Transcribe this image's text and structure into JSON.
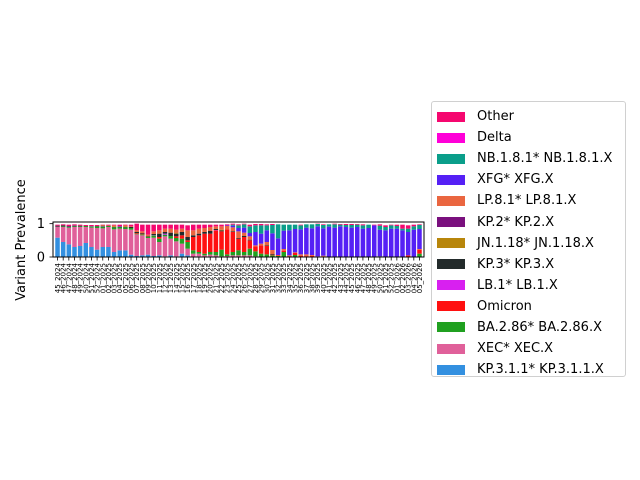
{
  "chart_data": {
    "type": "bar",
    "stacked": true,
    "title": "",
    "xlabel": "",
    "ylabel": "Variant Prevalence",
    "ylim": [
      0,
      1.05
    ],
    "yticks": [
      "0",
      "1"
    ],
    "legend_position": "right",
    "categories": [
      "45_2024",
      "46_2024",
      "47_2024",
      "48_2024",
      "49_2024",
      "50_2024",
      "51_2024",
      "52_2024",
      "01_2025",
      "02_2025",
      "03_2025",
      "04_2025",
      "05_2025",
      "06_2025",
      "07_2025",
      "08_2025",
      "09_2025",
      "10_2025",
      "11_2025",
      "12_2025",
      "13_2025",
      "14_2025",
      "15_2025",
      "16_2025",
      "17_2025",
      "18_2025",
      "19_2025",
      "20_2025",
      "21_2025",
      "22_2025",
      "23_2025",
      "24_2025",
      "25_2025",
      "26_2025",
      "27_2025",
      "28_2025",
      "29_2025",
      "30_2025",
      "31_2025",
      "32_2025",
      "33_2025",
      "34_2025",
      "35_2025",
      "36_2025",
      "37_2025",
      "38_2025",
      "39_2025",
      "40_2025",
      "41_2025",
      "42_2025",
      "43_2025",
      "44_2025",
      "45_2025",
      "46_2025",
      "47_2025",
      "48_2025",
      "49_2025",
      "50_2025",
      "51_2025",
      "52_2025",
      "01_2026",
      "02_2026",
      "03_2026",
      "04_2026",
      "05_2026"
    ],
    "series": [
      {
        "name": "KP.3.1.1* KP.3.1.1.X",
        "color": "#3390e0",
        "values": [
          0.58,
          0.45,
          0.38,
          0.3,
          0.33,
          0.42,
          0.3,
          0.22,
          0.3,
          0.3,
          0.15,
          0.2,
          0.2,
          0.07,
          0.03,
          0.05,
          0.07,
          0.03,
          0.05,
          0.02,
          0.05,
          0.02,
          0.1,
          0.05,
          0,
          0.02,
          0,
          0.02,
          0,
          0,
          0,
          0,
          0,
          0,
          0,
          0,
          0,
          0,
          0,
          0,
          0,
          0,
          0,
          0,
          0,
          0,
          0,
          0,
          0,
          0,
          0,
          0,
          0,
          0,
          0,
          0,
          0,
          0,
          0,
          0,
          0,
          0,
          0,
          0,
          0
        ]
      },
      {
        "name": "XEC* XEC.X",
        "color": "#e0609a",
        "values": [
          0.33,
          0.45,
          0.5,
          0.6,
          0.57,
          0.48,
          0.58,
          0.65,
          0.56,
          0.6,
          0.68,
          0.65,
          0.64,
          0.75,
          0.65,
          0.6,
          0.5,
          0.55,
          0.4,
          0.6,
          0.5,
          0.45,
          0.3,
          0.2,
          0.1,
          0.08,
          0.05,
          0.05,
          0.05,
          0.02,
          0.03,
          0.05,
          0.05,
          0.05,
          0.05,
          0.02,
          0,
          0,
          0,
          0,
          0,
          0,
          0,
          0,
          0,
          0,
          0,
          0,
          0,
          0,
          0,
          0,
          0,
          0,
          0,
          0,
          0,
          0,
          0,
          0,
          0,
          0,
          0,
          0,
          0
        ]
      },
      {
        "name": "BA.2.86* BA.2.86.X",
        "color": "#20a020",
        "values": [
          0,
          0.02,
          0.02,
          0.02,
          0.02,
          0.03,
          0.04,
          0.05,
          0.05,
          0.03,
          0.06,
          0.05,
          0.05,
          0.05,
          0.02,
          0.03,
          0.03,
          0.07,
          0.1,
          0.05,
          0.08,
          0.1,
          0.15,
          0.2,
          0.1,
          0.05,
          0.05,
          0.08,
          0.1,
          0.2,
          0.05,
          0.1,
          0.15,
          0.1,
          0.2,
          0.15,
          0.1,
          0.08,
          0.05,
          0.03,
          0.15,
          0.02,
          0.06,
          0,
          0.02,
          0,
          0,
          0,
          0,
          0,
          0,
          0,
          0,
          0,
          0,
          0,
          0,
          0.02,
          0,
          0,
          0,
          0,
          0,
          0,
          0.1
        ]
      },
      {
        "name": "Omicron",
        "color": "#ff1010",
        "values": [
          0,
          0,
          0,
          0,
          0,
          0,
          0,
          0,
          0,
          0,
          0,
          0,
          0,
          0,
          0.02,
          0.02,
          0,
          0,
          0.05,
          0,
          0,
          0.05,
          0.1,
          0.05,
          0.4,
          0.5,
          0.6,
          0.55,
          0.65,
          0.55,
          0.75,
          0.6,
          0.35,
          0.45,
          0.25,
          0.15,
          0.25,
          0.25,
          0.02,
          0.02,
          0.04,
          0.01,
          0.06,
          0.03,
          0.02,
          0.04,
          0,
          0.02,
          0,
          0,
          0,
          0,
          0,
          0,
          0,
          0,
          0,
          0,
          0,
          0,
          0,
          0,
          0.05,
          0,
          0.12
        ]
      },
      {
        "name": "LB.1* LB.1.X",
        "color": "#d820f0",
        "values": [
          0,
          0,
          0.01,
          0,
          0,
          0,
          0.01,
          0,
          0.01,
          0,
          0,
          0.02,
          0,
          0,
          0,
          0,
          0,
          0.01,
          0,
          0.03,
          0,
          0,
          0,
          0,
          0,
          0,
          0,
          0,
          0.01,
          0,
          0,
          0,
          0,
          0,
          0,
          0,
          0,
          0,
          0,
          0,
          0,
          0,
          0,
          0,
          0,
          0,
          0,
          0,
          0,
          0,
          0,
          0,
          0,
          0,
          0,
          0,
          0,
          0,
          0,
          0,
          0,
          0,
          0,
          0,
          0
        ]
      },
      {
        "name": "KP.3* KP.3.X",
        "color": "#232b2b",
        "values": [
          0.03,
          0.03,
          0.02,
          0.02,
          0.02,
          0,
          0,
          0.01,
          0.01,
          0,
          0.01,
          0.01,
          0.01,
          0.03,
          0.03,
          0.02,
          0.02,
          0.03,
          0.1,
          0.05,
          0.1,
          0.08,
          0.1,
          0.1,
          0.05,
          0.05,
          0.05,
          0.08,
          0.03,
          0.03,
          0,
          0.02,
          0.02,
          0.03,
          0.02,
          0,
          0,
          0.02,
          0.02,
          0,
          0,
          0,
          0,
          0,
          0,
          0,
          0,
          0,
          0,
          0,
          0,
          0,
          0,
          0,
          0,
          0,
          0,
          0,
          0,
          0,
          0,
          0,
          0,
          0,
          0
        ]
      },
      {
        "name": "JN.1.18* JN.1.18.X",
        "color": "#b8860b",
        "values": [
          0,
          0,
          0,
          0,
          0,
          0,
          0,
          0,
          0.02,
          0.01,
          0.02,
          0,
          0.02,
          0,
          0,
          0,
          0,
          0,
          0,
          0,
          0,
          0.02,
          0,
          0,
          0,
          0,
          0,
          0,
          0,
          0.02,
          0,
          0,
          0,
          0,
          0,
          0,
          0,
          0,
          0,
          0,
          0,
          0,
          0,
          0,
          0,
          0,
          0,
          0,
          0,
          0,
          0,
          0,
          0,
          0,
          0,
          0,
          0,
          0,
          0,
          0,
          0,
          0,
          0,
          0,
          0
        ]
      },
      {
        "name": "KP.2* KP.2.X",
        "color": "#7a107e",
        "values": [
          0,
          0,
          0,
          0.01,
          0,
          0,
          0,
          0,
          0,
          0,
          0,
          0,
          0,
          0,
          0,
          0,
          0,
          0,
          0,
          0,
          0,
          0,
          0,
          0,
          0,
          0,
          0,
          0,
          0,
          0,
          0,
          0,
          0,
          0,
          0,
          0,
          0,
          0,
          0,
          0,
          0,
          0,
          0,
          0,
          0,
          0,
          0,
          0,
          0,
          0,
          0,
          0,
          0,
          0,
          0,
          0,
          0,
          0,
          0,
          0,
          0,
          0,
          0,
          0,
          0
        ]
      },
      {
        "name": "LP.8.1* LP.8.1.X",
        "color": "#ea6640",
        "values": [
          0,
          0,
          0,
          0,
          0,
          0,
          0,
          0,
          0,
          0,
          0.03,
          0,
          0.03,
          0.02,
          0.05,
          0.05,
          0.05,
          0.08,
          0.1,
          0.1,
          0.12,
          0.1,
          0.1,
          0.2,
          0.15,
          0.15,
          0.12,
          0.12,
          0.08,
          0.1,
          0.1,
          0.12,
          0.2,
          0.1,
          0.1,
          0.03,
          0.05,
          0.1,
          0.12,
          0.01,
          0.05,
          0.02,
          0.02,
          0.05,
          0.04,
          0.02,
          0.02,
          0.02,
          0.01,
          0,
          0,
          0,
          0,
          0,
          0,
          0,
          0,
          0,
          0,
          0,
          0,
          0,
          0,
          0,
          0.02
        ]
      },
      {
        "name": "XFG* XFG.X",
        "color": "#5520f5",
        "values": [
          0,
          0,
          0,
          0,
          0,
          0,
          0,
          0,
          0,
          0,
          0,
          0,
          0,
          0,
          0,
          0,
          0,
          0,
          0,
          0,
          0,
          0,
          0,
          0,
          0,
          0,
          0,
          0,
          0,
          0,
          0.02,
          0.05,
          0.1,
          0.15,
          0.1,
          0.4,
          0.3,
          0.35,
          0.5,
          0.5,
          0.55,
          0.75,
          0.7,
          0.75,
          0.8,
          0.8,
          0.9,
          0.82,
          0.9,
          0.88,
          0.92,
          0.9,
          0.88,
          0.9,
          0.85,
          0.87,
          0.95,
          0.8,
          0.8,
          0.85,
          0.85,
          0.8,
          0.7,
          0.82,
          0.6
        ]
      },
      {
        "name": "NB.1.8.1* NB.1.8.1.X",
        "color": "#0a9e8a",
        "values": [
          0,
          0,
          0,
          0,
          0,
          0,
          0,
          0,
          0,
          0,
          0,
          0,
          0,
          0,
          0,
          0,
          0,
          0,
          0,
          0,
          0,
          0,
          0,
          0,
          0,
          0,
          0,
          0,
          0,
          0,
          0,
          0.03,
          0.08,
          0.1,
          0.2,
          0.2,
          0.25,
          0.15,
          0.25,
          0.42,
          0.18,
          0.17,
          0.13,
          0.12,
          0.1,
          0.12,
          0.07,
          0.1,
          0.07,
          0.1,
          0.05,
          0.06,
          0.08,
          0.07,
          0.1,
          0.1,
          0,
          0.12,
          0.1,
          0.1,
          0.08,
          0.05,
          0.1,
          0.1,
          0.12
        ]
      },
      {
        "name": "Delta",
        "color": "#ff00d8",
        "values": [
          0,
          0,
          0,
          0,
          0,
          0,
          0,
          0,
          0,
          0,
          0,
          0,
          0,
          0,
          0,
          0,
          0,
          0,
          0,
          0,
          0,
          0,
          0,
          0,
          0,
          0,
          0,
          0,
          0,
          0,
          0,
          0,
          0,
          0,
          0,
          0,
          0,
          0,
          0,
          0,
          0,
          0,
          0,
          0,
          0,
          0,
          0,
          0,
          0,
          0,
          0,
          0,
          0,
          0,
          0,
          0,
          0,
          0,
          0,
          0,
          0,
          0,
          0,
          0,
          0
        ]
      },
      {
        "name": "Other",
        "color": "#f5076f",
        "values": [
          0.03,
          0.03,
          0.04,
          0.03,
          0.03,
          0.03,
          0.03,
          0.03,
          0.02,
          0.03,
          0.02,
          0.04,
          0.02,
          0.05,
          0.2,
          0.2,
          0.3,
          0.2,
          0.17,
          0.12,
          0.12,
          0.15,
          0.12,
          0.15,
          0.17,
          0.12,
          0.1,
          0.07,
          0.05,
          0.05,
          0.03,
          0.03,
          0.03,
          0.02,
          0.05,
          0.04,
          0.04,
          0.03,
          0.03,
          0,
          0,
          0,
          0,
          0.02,
          0,
          0,
          0.01,
          0.02,
          0,
          0.02,
          0.02,
          0.03,
          0.03,
          0.02,
          0.03,
          0,
          0.02,
          0.04,
          0.05,
          0.02,
          0.04,
          0.12,
          0.1,
          0.05,
          0.02
        ]
      }
    ]
  }
}
